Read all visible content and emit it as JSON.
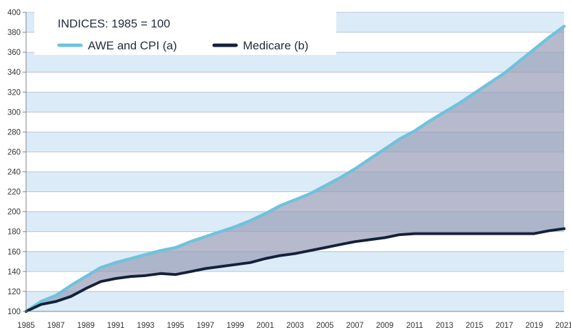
{
  "chart_data": {
    "type": "line",
    "subtitle": "INDICES: 1985 = 100",
    "x": [
      1985,
      1986,
      1987,
      1988,
      1989,
      1990,
      1991,
      1992,
      1993,
      1994,
      1995,
      1996,
      1997,
      1998,
      1999,
      2000,
      2001,
      2002,
      2003,
      2004,
      2005,
      2006,
      2007,
      2008,
      2009,
      2010,
      2011,
      2012,
      2013,
      2014,
      2015,
      2016,
      2017,
      2018,
      2019,
      2020,
      2021
    ],
    "x_tick_labels": [
      "1985",
      "1987",
      "1989",
      "1991",
      "1993",
      "1995",
      "1997",
      "1999",
      "2001",
      "2003",
      "2005",
      "2007",
      "2009",
      "2011",
      "2013",
      "2015",
      "2017",
      "2019",
      "2021"
    ],
    "y_tick_labels": [
      "100",
      "120",
      "140",
      "160",
      "180",
      "200",
      "220",
      "240",
      "260",
      "280",
      "300",
      "320",
      "340",
      "360",
      "380",
      "400"
    ],
    "ylim": [
      100,
      400
    ],
    "xlim": [
      1985,
      2021
    ],
    "grid": true,
    "legend_position": "top-left",
    "series": [
      {
        "name": "AWE and CPI (a)",
        "color": "#6fc3db",
        "values": [
          100,
          110,
          116,
          126,
          135,
          144,
          149,
          153,
          157,
          161,
          164,
          170,
          175,
          180,
          185,
          191,
          198,
          206,
          212,
          218,
          226,
          234,
          243,
          253,
          263,
          273,
          281,
          291,
          300,
          309,
          319,
          329,
          339,
          351,
          363,
          375,
          386
        ]
      },
      {
        "name": "Medicare (b)",
        "color": "#14213a",
        "values": [
          100,
          107,
          110,
          115,
          123,
          130,
          133,
          135,
          136,
          138,
          137,
          140,
          143,
          145,
          147,
          149,
          153,
          156,
          158,
          161,
          164,
          167,
          170,
          172,
          174,
          177,
          178,
          178,
          178,
          178,
          178,
          178,
          178,
          178,
          178,
          181,
          183
        ]
      }
    ],
    "band_colors": [
      "#dcebf8",
      "#ffffff"
    ],
    "fill_between_color": "#9aa0b8"
  }
}
